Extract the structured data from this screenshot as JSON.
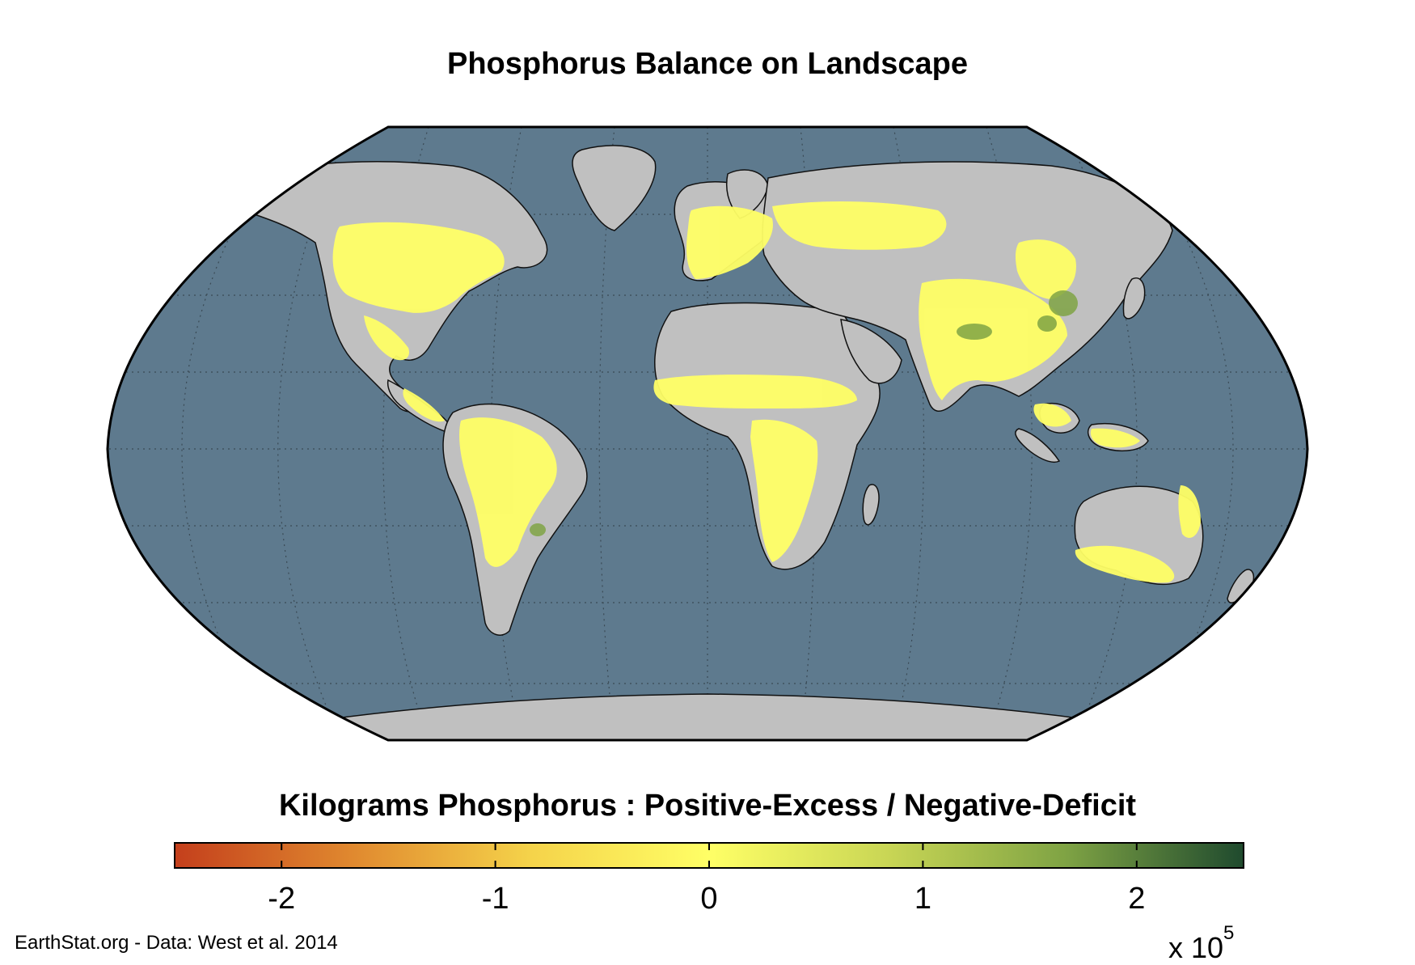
{
  "title": "Phosphorus Balance on Landscape",
  "colorbar": {
    "title": "Kilograms Phosphorus : Positive-Excess / Negative-Deficit",
    "range": [
      -2.5,
      2.5
    ],
    "ticks": [
      {
        "value": -2,
        "label": "-2"
      },
      {
        "value": -1,
        "label": "-1"
      },
      {
        "value": 0,
        "label": "0"
      },
      {
        "value": 1,
        "label": "1"
      },
      {
        "value": 2,
        "label": "2"
      }
    ],
    "multiplier_base": "x 10",
    "multiplier_exponent": "5",
    "gradient": [
      "#c43f1c",
      "#e0892f",
      "#f5d34a",
      "#ffff66",
      "#c9d655",
      "#7fa344",
      "#1f4a2e"
    ]
  },
  "credit": "EarthStat.org - Data: West et al. 2014",
  "map": {
    "projection": "Robinson",
    "ocean_color": "#5e7a8e",
    "land_color": "#c0c0c0",
    "cropland_color": "#ffff66",
    "graticule": true
  }
}
